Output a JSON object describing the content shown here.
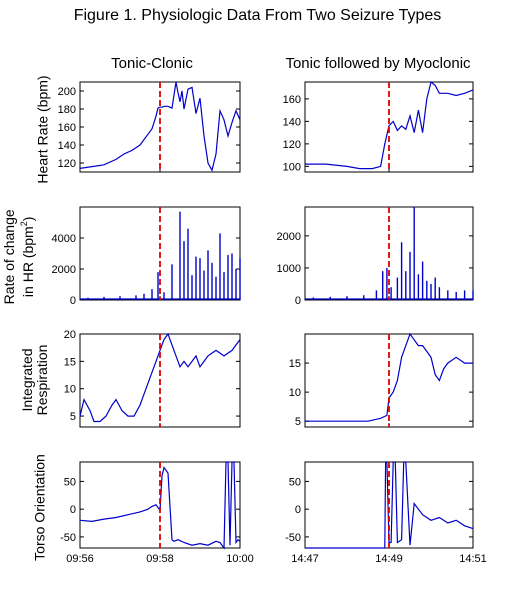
{
  "title": "Figure 1. Physiologic Data From Two Seizure Types",
  "columns": [
    "Tonic-Clonic",
    "Tonic followed by Myoclonic"
  ],
  "row_labels": {
    "heart_rate": "Heart Rate (bpm)",
    "rate_change_line1": "Rate of change",
    "rate_change_line2": "in HR (bpm",
    "rate_change_sup": "2",
    "rate_change_end": ")",
    "respiration_line1": "Integrated",
    "respiration_line2": "Respiration",
    "torso": "Torso Orientation"
  },
  "colors": {
    "signal": "#0000cc",
    "marker": "#dd0000"
  },
  "chart_data": [
    {
      "type": "line",
      "panel": "heart_rate_tonic_clonic",
      "ylim": [
        110,
        210
      ],
      "yticks": [
        120,
        140,
        160,
        180,
        200
      ],
      "xlim": [
        0,
        4
      ],
      "x": [
        0,
        0.3,
        0.6,
        0.9,
        1.1,
        1.3,
        1.5,
        1.7,
        1.8,
        1.9,
        1.95,
        2.0,
        2.05,
        2.1,
        2.2,
        2.3,
        2.4,
        2.45,
        2.5,
        2.55,
        2.6,
        2.7,
        2.8,
        2.9,
        3.0,
        3.1,
        3.2,
        3.3,
        3.4,
        3.5,
        3.6,
        3.7,
        3.8,
        3.9,
        4.0
      ],
      "y": [
        114,
        116,
        118,
        124,
        130,
        134,
        140,
        152,
        158,
        172,
        181,
        182,
        182,
        183,
        183,
        181,
        210,
        198,
        188,
        200,
        180,
        202,
        204,
        175,
        192,
        150,
        120,
        112,
        130,
        178,
        168,
        150,
        165,
        178,
        168
      ]
    },
    {
      "type": "bar",
      "panel": "rate_change_tonic_clonic",
      "ylim": [
        0,
        6000
      ],
      "yticks": [
        0,
        2000,
        4000
      ],
      "xlim": [
        0,
        4
      ],
      "x": [
        0.2,
        0.6,
        1.0,
        1.4,
        1.6,
        1.8,
        1.95,
        2.1,
        2.3,
        2.5,
        2.6,
        2.7,
        2.8,
        2.9,
        3.0,
        3.1,
        3.2,
        3.3,
        3.4,
        3.5,
        3.6,
        3.7,
        3.8,
        3.9,
        4.0
      ],
      "values": [
        150,
        200,
        250,
        300,
        400,
        700,
        1800,
        500,
        2300,
        5700,
        3800,
        4600,
        1600,
        2800,
        2700,
        1900,
        3200,
        2400,
        1500,
        4300,
        1800,
        2900,
        3000,
        2000,
        2700
      ]
    },
    {
      "type": "line",
      "panel": "respiration_tonic_clonic",
      "ylim": [
        3,
        20
      ],
      "yticks": [
        5,
        10,
        15,
        20
      ],
      "xlim": [
        0,
        4
      ],
      "x": [
        0,
        0.1,
        0.25,
        0.35,
        0.5,
        0.65,
        0.8,
        0.9,
        1.05,
        1.2,
        1.35,
        1.5,
        1.6,
        1.7,
        1.8,
        1.9,
        2.0,
        2.1,
        2.2,
        2.3,
        2.4,
        2.5,
        2.6,
        2.7,
        2.8,
        2.9,
        3.0,
        3.1,
        3.2,
        3.4,
        3.6,
        3.8,
        4.0
      ],
      "y": [
        5,
        8,
        6,
        4,
        4,
        5,
        7,
        8,
        6,
        5,
        5,
        7,
        9,
        11,
        13,
        15,
        17,
        19,
        20,
        18,
        16,
        14,
        15,
        14,
        15,
        16,
        14,
        15,
        16,
        17,
        16,
        17,
        19
      ]
    },
    {
      "type": "line",
      "panel": "torso_tonic_clonic",
      "ylim": [
        -70,
        85
      ],
      "yticks": [
        -50,
        0,
        50
      ],
      "xlim": [
        0,
        4
      ],
      "x": [
        0,
        0.3,
        0.6,
        0.9,
        1.2,
        1.5,
        1.7,
        1.8,
        1.9,
        2.0,
        2.05,
        2.1,
        2.2,
        2.3,
        2.35,
        2.45,
        2.6,
        2.8,
        3.0,
        3.2,
        3.4,
        3.5,
        3.6,
        3.65,
        3.7,
        3.75,
        3.8,
        3.85,
        3.9,
        3.95,
        4.0
      ],
      "y": [
        -20,
        -22,
        -18,
        -15,
        -10,
        -5,
        0,
        5,
        8,
        -2,
        60,
        75,
        65,
        -55,
        -58,
        -55,
        -60,
        -65,
        -62,
        -65,
        -58,
        -60,
        -70,
        85,
        85,
        -65,
        85,
        85,
        -60,
        -55,
        -58
      ]
    },
    {
      "type": "line",
      "panel": "heart_rate_tonic_myoclonic",
      "ylim": [
        95,
        175
      ],
      "yticks": [
        100,
        120,
        140,
        160
      ],
      "xlim": [
        0,
        4
      ],
      "x": [
        0,
        0.5,
        1.0,
        1.3,
        1.6,
        1.8,
        1.9,
        2.0,
        2.1,
        2.2,
        2.3,
        2.4,
        2.5,
        2.6,
        2.7,
        2.8,
        2.9,
        3.0,
        3.1,
        3.2,
        3.4,
        3.6,
        3.8,
        4.0
      ],
      "y": [
        102,
        102,
        100,
        98,
        98,
        100,
        120,
        136,
        140,
        132,
        136,
        133,
        145,
        130,
        150,
        130,
        160,
        175,
        172,
        165,
        165,
        163,
        165,
        168
      ]
    },
    {
      "type": "bar",
      "panel": "rate_change_tonic_myoclonic",
      "ylim": [
        0,
        2900
      ],
      "yticks": [
        0,
        1000,
        2000
      ],
      "xlim": [
        0,
        4
      ],
      "x": [
        0.2,
        0.6,
        1.0,
        1.4,
        1.7,
        1.85,
        1.95,
        2.05,
        2.2,
        2.3,
        2.4,
        2.5,
        2.6,
        2.7,
        2.8,
        2.9,
        3.0,
        3.1,
        3.2,
        3.4,
        3.6,
        3.8,
        4.0
      ],
      "values": [
        80,
        100,
        120,
        150,
        300,
        900,
        1000,
        400,
        700,
        1800,
        900,
        1500,
        2900,
        800,
        1200,
        600,
        500,
        700,
        400,
        300,
        250,
        300,
        300
      ]
    },
    {
      "type": "line",
      "panel": "respiration_tonic_myoclonic",
      "ylim": [
        4,
        20
      ],
      "yticks": [
        5,
        10,
        15
      ],
      "xlim": [
        0,
        4
      ],
      "x": [
        0,
        0.5,
        1.0,
        1.5,
        1.8,
        1.95,
        2.0,
        2.1,
        2.2,
        2.3,
        2.4,
        2.5,
        2.6,
        2.7,
        2.8,
        2.9,
        3.0,
        3.1,
        3.2,
        3.3,
        3.4,
        3.6,
        3.8,
        4.0
      ],
      "y": [
        5,
        5,
        5,
        5,
        5.5,
        6,
        9,
        10,
        12,
        16,
        18,
        20,
        19,
        18,
        18,
        17,
        16,
        13,
        12,
        14,
        15,
        16,
        15,
        15
      ]
    },
    {
      "type": "line",
      "panel": "torso_tonic_myoclonic",
      "ylim": [
        -70,
        85
      ],
      "yticks": [
        -50,
        0,
        50
      ],
      "xlim": [
        0,
        4
      ],
      "x": [
        0,
        0.5,
        1.0,
        1.5,
        1.9,
        1.92,
        1.95,
        2.0,
        2.05,
        2.1,
        2.15,
        2.2,
        2.3,
        2.35,
        2.4,
        2.5,
        2.6,
        2.8,
        3.0,
        3.2,
        3.4,
        3.6,
        3.8,
        4.0
      ],
      "y": [
        -70,
        -70,
        -70,
        -70,
        -70,
        85,
        85,
        -60,
        -60,
        85,
        85,
        -60,
        -55,
        85,
        85,
        -65,
        10,
        -10,
        -20,
        -15,
        -25,
        -20,
        -30,
        -35
      ]
    }
  ],
  "x_tick_labels": {
    "left": [
      "09:56",
      "09:58",
      "10:00"
    ],
    "right": [
      "14:47",
      "14:49",
      "14:51"
    ]
  },
  "marker_x": 2.0
}
